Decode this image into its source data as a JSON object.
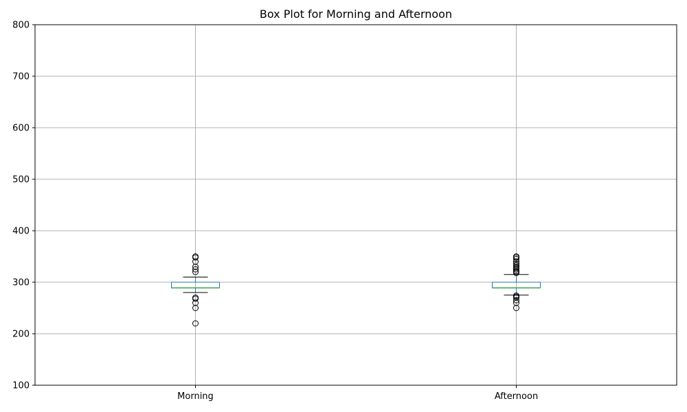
{
  "chart_data": {
    "type": "box",
    "title": "Box Plot for Morning and Afternoon",
    "xlabel": "",
    "ylabel": "",
    "ylim": [
      100,
      800
    ],
    "yticks": [
      100,
      200,
      300,
      400,
      500,
      600,
      700,
      800
    ],
    "grid": true,
    "categories": [
      "Morning",
      "Afternoon"
    ],
    "boxes": [
      {
        "name": "Morning",
        "whisker_low": 280,
        "q1": 289,
        "median": 289,
        "q3": 300,
        "whisker_high": 310,
        "outliers": [
          220,
          250,
          260,
          268,
          270,
          320,
          325,
          330,
          340,
          348,
          350
        ]
      },
      {
        "name": "Afternoon",
        "whisker_low": 275,
        "q1": 289,
        "median": 289,
        "q3": 300,
        "whisker_high": 315,
        "outliers": [
          250,
          260,
          265,
          270,
          272,
          274,
          318,
          320,
          322,
          325,
          328,
          330,
          333,
          336,
          340,
          345,
          348,
          350
        ]
      }
    ],
    "colors": {
      "box": "#1f77b4",
      "median": "#2ca02c",
      "whisker": "#000000",
      "grid": "#b0b0b0"
    }
  }
}
